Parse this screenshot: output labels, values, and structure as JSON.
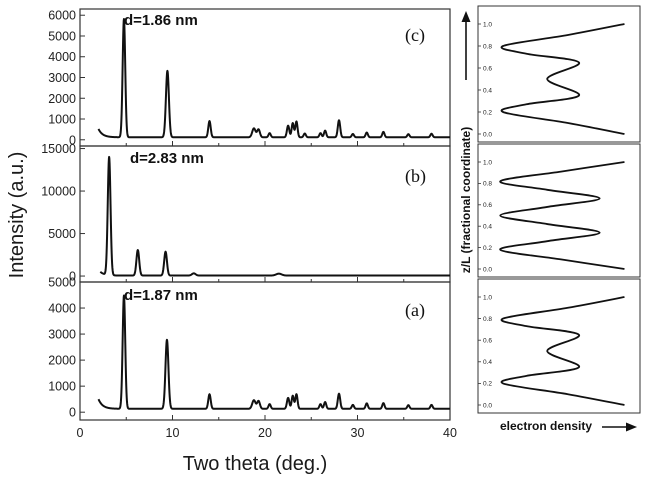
{
  "chart_data": [
    {
      "type": "line",
      "panel": "(c)",
      "annotation": "d=1.86 nm",
      "xlim": [
        0,
        40
      ],
      "ylim": [
        -300,
        6300
      ],
      "yticks": [
        0,
        1000,
        2000,
        3000,
        4000,
        5000,
        6000
      ],
      "baseline": 120,
      "start": {
        "x": 2.0,
        "y": 520
      },
      "peaks": [
        {
          "x": 4.75,
          "y": 5700,
          "w": 0.14
        },
        {
          "x": 9.45,
          "y": 3200,
          "w": 0.16
        },
        {
          "x": 14.0,
          "y": 780,
          "w": 0.13
        },
        {
          "x": 18.8,
          "y": 430,
          "w": 0.18
        },
        {
          "x": 19.3,
          "y": 380,
          "w": 0.15
        },
        {
          "x": 20.5,
          "y": 200,
          "w": 0.12
        },
        {
          "x": 22.5,
          "y": 560,
          "w": 0.13
        },
        {
          "x": 23.0,
          "y": 680,
          "w": 0.12
        },
        {
          "x": 23.4,
          "y": 760,
          "w": 0.12
        },
        {
          "x": 24.3,
          "y": 180,
          "w": 0.12
        },
        {
          "x": 26.0,
          "y": 200,
          "w": 0.12
        },
        {
          "x": 26.5,
          "y": 320,
          "w": 0.12
        },
        {
          "x": 28.0,
          "y": 820,
          "w": 0.13
        },
        {
          "x": 29.5,
          "y": 160,
          "w": 0.12
        },
        {
          "x": 31.0,
          "y": 230,
          "w": 0.12
        },
        {
          "x": 32.8,
          "y": 260,
          "w": 0.12
        },
        {
          "x": 35.5,
          "y": 150,
          "w": 0.12
        },
        {
          "x": 38.0,
          "y": 170,
          "w": 0.12
        }
      ]
    },
    {
      "type": "line",
      "panel": "(b)",
      "annotation": "d=2.83 nm",
      "xlim": [
        0,
        40
      ],
      "ylim": [
        -700,
        15300
      ],
      "yticks": [
        0,
        5000,
        10000,
        15000
      ],
      "baseline": 60,
      "start": {
        "x": 2.2,
        "y": 500
      },
      "peaks": [
        {
          "x": 3.15,
          "y": 13900,
          "w": 0.15
        },
        {
          "x": 6.25,
          "y": 3000,
          "w": 0.15
        },
        {
          "x": 9.25,
          "y": 2800,
          "w": 0.15
        },
        {
          "x": 12.3,
          "y": 260,
          "w": 0.2
        },
        {
          "x": 21.5,
          "y": 220,
          "w": 0.3
        }
      ]
    },
    {
      "type": "line",
      "panel": "(a)",
      "annotation": "d=1.87 nm",
      "xlim": [
        0,
        40
      ],
      "ylim": [
        -300,
        5000
      ],
      "yticks": [
        0,
        1000,
        2000,
        3000,
        4000,
        5000
      ],
      "baseline": 130,
      "start": {
        "x": 2.0,
        "y": 500
      },
      "peaks": [
        {
          "x": 4.75,
          "y": 4350,
          "w": 0.14
        },
        {
          "x": 9.4,
          "y": 2650,
          "w": 0.16
        },
        {
          "x": 14.0,
          "y": 560,
          "w": 0.13
        },
        {
          "x": 18.8,
          "y": 330,
          "w": 0.18
        },
        {
          "x": 19.3,
          "y": 300,
          "w": 0.15
        },
        {
          "x": 20.5,
          "y": 180,
          "w": 0.12
        },
        {
          "x": 22.5,
          "y": 420,
          "w": 0.13
        },
        {
          "x": 23.0,
          "y": 500,
          "w": 0.12
        },
        {
          "x": 23.4,
          "y": 560,
          "w": 0.12
        },
        {
          "x": 26.0,
          "y": 180,
          "w": 0.12
        },
        {
          "x": 26.5,
          "y": 260,
          "w": 0.12
        },
        {
          "x": 28.0,
          "y": 580,
          "w": 0.13
        },
        {
          "x": 29.5,
          "y": 150,
          "w": 0.12
        },
        {
          "x": 31.0,
          "y": 210,
          "w": 0.12
        },
        {
          "x": 32.8,
          "y": 220,
          "w": 0.12
        },
        {
          "x": 35.5,
          "y": 140,
          "w": 0.12
        },
        {
          "x": 38.0,
          "y": 150,
          "w": 0.12
        }
      ]
    },
    {
      "type": "line",
      "panel": "electron-density-top",
      "y_ticks": [
        "0.0",
        "0.2",
        "0.4",
        "0.6",
        "0.8",
        "1.0"
      ],
      "profile": [
        {
          "z": 0.0,
          "rho": 0.96
        },
        {
          "z": 0.1,
          "rho": 0.55
        },
        {
          "z": 0.2,
          "rho": 0.08
        },
        {
          "z": 0.27,
          "rho": 0.25
        },
        {
          "z": 0.35,
          "rho": 0.63
        },
        {
          "z": 0.5,
          "rho": 0.4
        },
        {
          "z": 0.65,
          "rho": 0.63
        },
        {
          "z": 0.73,
          "rho": 0.25
        },
        {
          "z": 0.8,
          "rho": 0.08
        },
        {
          "z": 0.9,
          "rho": 0.55
        },
        {
          "z": 1.0,
          "rho": 0.96
        }
      ]
    },
    {
      "type": "line",
      "panel": "electron-density-middle",
      "y_ticks": [
        "0.0",
        "0.2",
        "0.4",
        "0.6",
        "0.8",
        "1.0"
      ],
      "profile": [
        {
          "z": 0.0,
          "rho": 0.96
        },
        {
          "z": 0.09,
          "rho": 0.5
        },
        {
          "z": 0.18,
          "rho": 0.06
        },
        {
          "z": 0.26,
          "rho": 0.4
        },
        {
          "z": 0.34,
          "rho": 0.78
        },
        {
          "z": 0.42,
          "rho": 0.4
        },
        {
          "z": 0.5,
          "rho": 0.06
        },
        {
          "z": 0.58,
          "rho": 0.4
        },
        {
          "z": 0.66,
          "rho": 0.78
        },
        {
          "z": 0.74,
          "rho": 0.4
        },
        {
          "z": 0.82,
          "rho": 0.06
        },
        {
          "z": 0.91,
          "rho": 0.5
        },
        {
          "z": 1.0,
          "rho": 0.96
        }
      ]
    },
    {
      "type": "line",
      "panel": "electron-density-bottom",
      "y_ticks": [
        "0.0",
        "0.2",
        "0.4",
        "0.6",
        "0.8",
        "1.0"
      ],
      "profile": [
        {
          "z": 0.0,
          "rho": 0.96
        },
        {
          "z": 0.1,
          "rho": 0.55
        },
        {
          "z": 0.2,
          "rho": 0.08
        },
        {
          "z": 0.27,
          "rho": 0.25
        },
        {
          "z": 0.35,
          "rho": 0.63
        },
        {
          "z": 0.5,
          "rho": 0.4
        },
        {
          "z": 0.65,
          "rho": 0.63
        },
        {
          "z": 0.73,
          "rho": 0.25
        },
        {
          "z": 0.8,
          "rho": 0.08
        },
        {
          "z": 0.9,
          "rho": 0.55
        },
        {
          "z": 1.0,
          "rho": 0.96
        }
      ]
    }
  ],
  "labels": {
    "xlabel": "Two theta (deg.)",
    "ylabel": "Intensity (a.u.)",
    "x_ticks": [
      "0",
      "10",
      "20",
      "30",
      "40"
    ],
    "side_ylabel": "z/L (fractional coordinate)",
    "side_xlabel": "electron density"
  },
  "style": {
    "line_color": "#111111",
    "frame_color": "#333333"
  }
}
